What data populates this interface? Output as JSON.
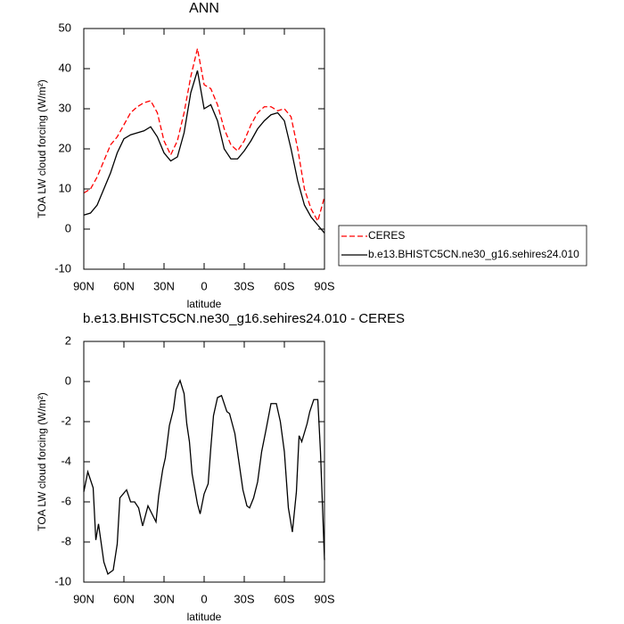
{
  "chart_data": [
    {
      "type": "line",
      "title": "ANN",
      "xlabel": "latitude",
      "ylabel": "TOA LW cloud forcing (W/m²)",
      "x": [
        90,
        85,
        80,
        75,
        70,
        65,
        60,
        55,
        50,
        45,
        40,
        35,
        30,
        25,
        20,
        15,
        10,
        5,
        0,
        -5,
        -10,
        -15,
        -20,
        -25,
        -30,
        -35,
        -40,
        -45,
        -50,
        -55,
        -60,
        -65,
        -70,
        -75,
        -80,
        -85,
        -90
      ],
      "series": [
        {
          "name": "CERES",
          "color": "#ff0000",
          "dashed": true,
          "values": [
            9,
            10,
            13,
            17,
            21,
            23,
            26,
            29,
            30.5,
            31.5,
            32,
            29,
            22,
            18.5,
            22,
            29,
            38,
            45,
            36,
            35,
            31,
            25,
            21,
            19.5,
            22,
            26,
            29,
            30.5,
            30.5,
            29.5,
            30,
            28,
            20,
            10,
            5,
            2,
            8
          ]
        },
        {
          "name": "b.e13.BHISTC5CN.ne30_g16.sehires24.010",
          "color": "#000000",
          "dashed": false,
          "values": [
            3.5,
            4,
            6,
            10,
            14,
            19,
            22.5,
            23.5,
            24,
            24.5,
            25.5,
            23,
            19,
            17,
            18,
            24,
            34,
            39.5,
            30,
            31,
            27,
            20,
            17.5,
            17.5,
            19.5,
            22,
            25,
            27,
            28.5,
            29,
            27,
            20,
            12,
            6,
            3,
            1,
            -1
          ]
        }
      ],
      "xlim": [
        90,
        -90
      ],
      "xticks": [
        {
          "value": 90,
          "label": "90N"
        },
        {
          "value": 60,
          "label": "60N"
        },
        {
          "value": 30,
          "label": "30N"
        },
        0,
        {
          "value": -30,
          "label": "30S"
        },
        {
          "value": -60,
          "label": "60S"
        },
        {
          "value": -90,
          "label": "90S"
        }
      ],
      "ylim": [
        -10,
        50
      ],
      "yticks": [
        -10,
        0,
        10,
        20,
        30,
        40,
        50
      ],
      "legend": "right"
    },
    {
      "type": "line",
      "title": "b.e13.BHISTC5CN.ne30_g16.sehires24.010 - CERES",
      "xlabel": "latitude",
      "ylabel": "TOA LW cloud forcing (W/m²)",
      "x": [
        90,
        87,
        83,
        81,
        79,
        75,
        72,
        68,
        65,
        63,
        58,
        55,
        52,
        49,
        46,
        42,
        36,
        34,
        31,
        29,
        26,
        23,
        21,
        18,
        15,
        13,
        11,
        9,
        5,
        3,
        0,
        -3,
        -5,
        -7,
        -10,
        -13,
        -17,
        -19,
        -23,
        -26,
        -29,
        -32,
        -34,
        -37,
        -40,
        -43,
        -46,
        -50,
        -54,
        -57,
        -60,
        -63,
        -66,
        -69,
        -71,
        -73,
        -77,
        -79,
        -82,
        -85,
        -87,
        -90
      ],
      "series": [
        {
          "color": "#000000",
          "dashed": false,
          "values": [
            -5.5,
            -4.5,
            -5.3,
            -7.9,
            -7.1,
            -9.0,
            -9.6,
            -9.4,
            -8.1,
            -5.8,
            -5.4,
            -6.0,
            -6.0,
            -6.3,
            -7.2,
            -6.2,
            -7.0,
            -5.7,
            -4.4,
            -3.8,
            -2.2,
            -1.4,
            -0.4,
            0.05,
            -0.6,
            -2.1,
            -3.0,
            -4.6,
            -6.1,
            -6.6,
            -5.6,
            -5.1,
            -3.3,
            -1.7,
            -0.8,
            -0.7,
            -1.5,
            -1.6,
            -2.6,
            -4.0,
            -5.4,
            -6.2,
            -6.3,
            -5.8,
            -5.0,
            -3.5,
            -2.5,
            -1.1,
            -1.1,
            -2.0,
            -3.5,
            -6.3,
            -7.5,
            -5.5,
            -2.7,
            -3.0,
            -2.1,
            -1.5,
            -0.9,
            -0.9,
            -3.5,
            -8.9
          ]
        }
      ],
      "xlim": [
        90,
        -90
      ],
      "xticks": [
        {
          "value": 90,
          "label": "90N"
        },
        {
          "value": 60,
          "label": "60N"
        },
        {
          "value": 30,
          "label": "30N"
        },
        0,
        {
          "value": -30,
          "label": "30S"
        },
        {
          "value": -60,
          "label": "60S"
        },
        {
          "value": -90,
          "label": "90S"
        }
      ],
      "ylim": [
        -10,
        2
      ],
      "yticks": [
        -10,
        -8,
        -6,
        -4,
        -2,
        0,
        2
      ]
    }
  ]
}
